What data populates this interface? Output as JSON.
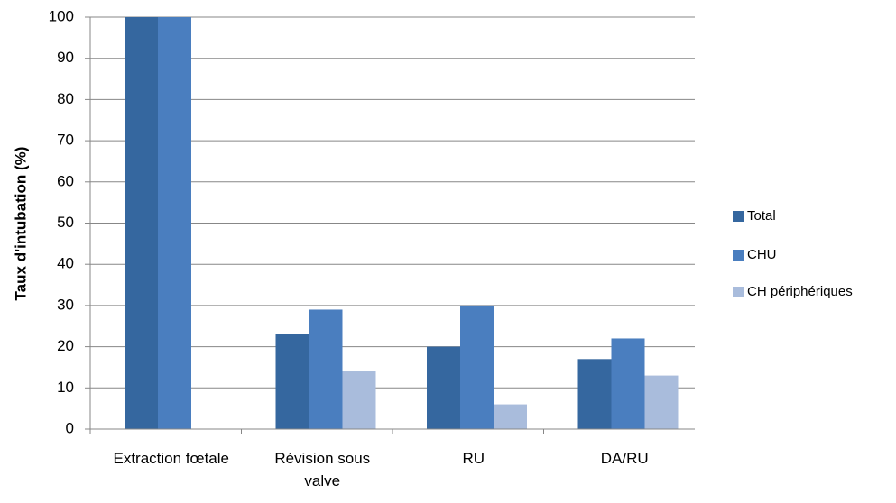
{
  "chart_data": {
    "type": "bar",
    "y_label": "Taux d'intubation (%)",
    "categories": [
      "Extraction fœtale",
      "Révision sous valve",
      "RU",
      "DA/RU"
    ],
    "series": [
      {
        "name": "Total",
        "color": "#35679f",
        "values": [
          100,
          23,
          20,
          17
        ]
      },
      {
        "name": "CHU",
        "color": "#4a7ebf",
        "values": [
          100,
          29,
          30,
          22
        ]
      },
      {
        "name": "CH périphériques",
        "color": "#a9bcdc",
        "values": [
          0,
          14,
          6,
          13
        ]
      }
    ],
    "ylim": [
      0,
      100
    ],
    "yticks": [
      0,
      10,
      20,
      30,
      40,
      50,
      60,
      70,
      80,
      90,
      100
    ],
    "grid": true,
    "legend": "right"
  }
}
